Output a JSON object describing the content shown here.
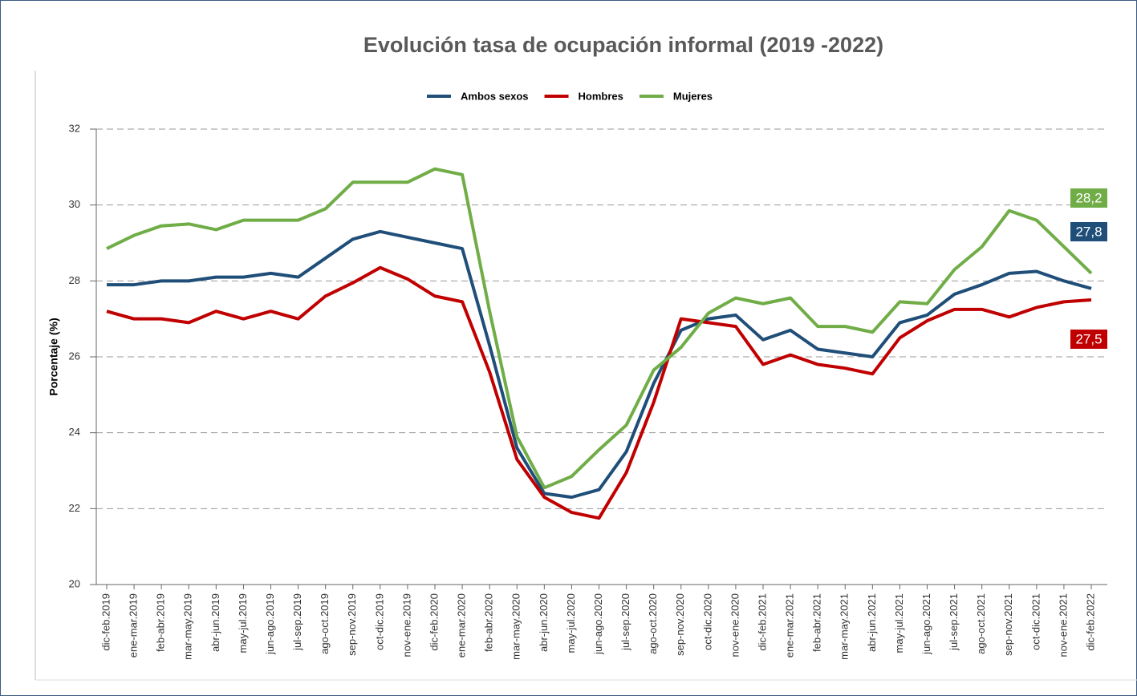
{
  "chart_data": {
    "type": "line",
    "title": "Evolución tasa de ocupación informal (2019 -2022)",
    "y_label": "Porcentaje (%)",
    "categories": [
      "dic-feb.2019",
      "ene-mar.2019",
      "feb-abr.2019",
      "mar-may.2019",
      "abr-jun.2019",
      "may-jul.2019",
      "jun-ago.2019",
      "jul-sep.2019",
      "ago-oct.2019",
      "sep-nov.2019",
      "oct-dic.2019",
      "nov-ene.2019",
      "dic-feb.2020",
      "ene-mar.2020",
      "feb-abr.2020",
      "mar-may.2020",
      "abr-jun.2020",
      "may-jul.2020",
      "jun-ago.2020",
      "jul-sep.2020",
      "ago-oct.2020",
      "sep-nov.2020",
      "oct-dic.2020",
      "nov-ene.2020",
      "dic-feb.2021",
      "ene-mar.2021",
      "feb-abr.2021",
      "mar-may.2021",
      "abr-jun.2021",
      "may-jul.2021",
      "jun-ago.2021",
      "jul-sep.2021",
      "ago-oct.2021",
      "sep-nov.2021",
      "oct-dic.2021",
      "nov-ene.2021",
      "dic-feb.2022"
    ],
    "series": [
      {
        "name": "Ambos sexos",
        "color": "#1f4e79",
        "values": [
          27.9,
          27.9,
          28.0,
          28.0,
          28.1,
          28.1,
          28.2,
          28.1,
          28.6,
          29.1,
          29.3,
          29.15,
          29.0,
          28.85,
          26.3,
          23.6,
          22.4,
          22.3,
          22.5,
          23.5,
          25.3,
          26.7,
          27.0,
          27.1,
          26.45,
          26.7,
          26.2,
          26.1,
          26.0,
          26.9,
          27.1,
          27.65,
          27.9,
          28.2,
          28.25,
          28.0,
          27.8
        ],
        "value_labels": [
          null,
          null,
          null,
          null,
          null,
          null,
          null,
          null,
          null,
          null,
          null,
          null,
          null,
          null,
          null,
          null,
          null,
          null,
          null,
          null,
          null,
          null,
          null,
          null,
          null,
          null,
          null,
          null,
          null,
          null,
          null,
          null,
          null,
          null,
          null,
          null,
          "27,8"
        ]
      },
      {
        "name": "Hombres",
        "color": "#c00000",
        "values": [
          27.2,
          27.0,
          27.0,
          26.9,
          27.2,
          27.0,
          27.2,
          27.0,
          27.6,
          27.95,
          28.35,
          28.05,
          27.6,
          27.45,
          25.6,
          23.3,
          22.3,
          21.9,
          21.75,
          22.95,
          24.8,
          27.0,
          26.9,
          26.8,
          25.8,
          26.05,
          25.8,
          25.7,
          25.55,
          26.5,
          26.95,
          27.25,
          27.25,
          27.05,
          27.3,
          27.45,
          27.5
        ],
        "value_labels": [
          null,
          null,
          null,
          null,
          null,
          null,
          null,
          null,
          null,
          null,
          null,
          null,
          null,
          null,
          null,
          null,
          null,
          null,
          null,
          null,
          null,
          null,
          null,
          null,
          null,
          null,
          null,
          null,
          null,
          null,
          null,
          null,
          null,
          null,
          null,
          null,
          "27,5"
        ]
      },
      {
        "name": "Mujeres",
        "color": "#70ad47",
        "values": [
          28.85,
          29.2,
          29.45,
          29.5,
          29.35,
          29.6,
          29.6,
          29.6,
          29.9,
          30.6,
          30.6,
          30.6,
          30.95,
          30.8,
          27.2,
          23.9,
          22.55,
          22.85,
          23.55,
          24.2,
          25.65,
          26.25,
          27.15,
          27.55,
          27.4,
          27.55,
          26.8,
          26.8,
          26.65,
          27.45,
          27.4,
          28.3,
          28.9,
          29.85,
          29.6,
          28.9,
          28.2
        ],
        "value_labels": [
          null,
          null,
          null,
          null,
          null,
          null,
          null,
          null,
          null,
          null,
          null,
          null,
          null,
          null,
          null,
          null,
          null,
          null,
          null,
          null,
          null,
          null,
          null,
          null,
          null,
          null,
          null,
          null,
          null,
          null,
          null,
          null,
          null,
          null,
          null,
          null,
          "28,2"
        ]
      }
    ],
    "ylim": [
      20,
      32
    ],
    "yticks": [
      20,
      22,
      24,
      26,
      28,
      30,
      32
    ],
    "grid": true,
    "legend": "top"
  }
}
